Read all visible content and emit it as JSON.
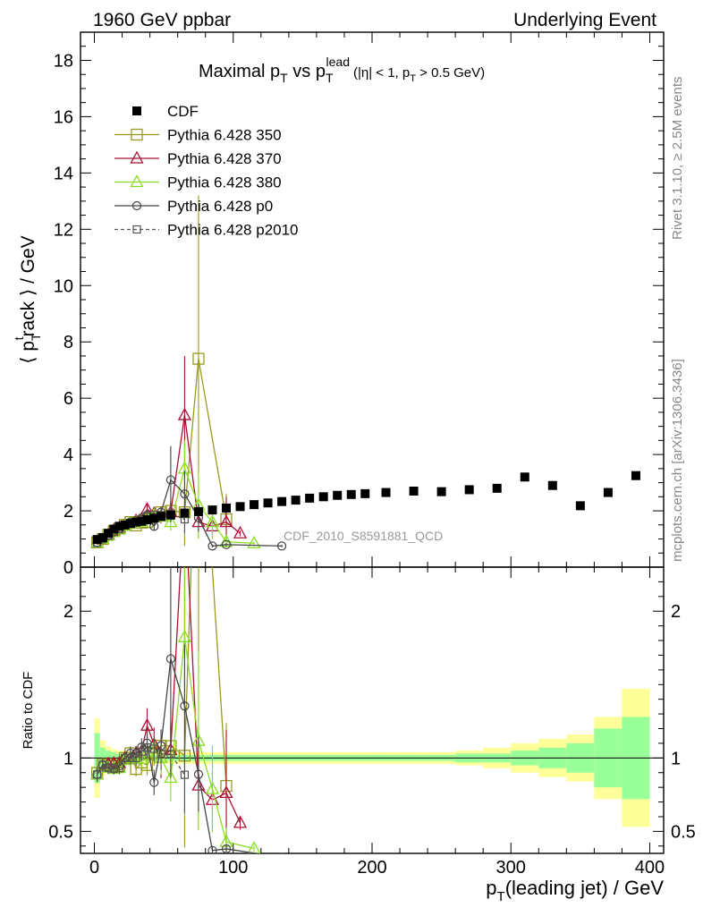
{
  "header": {
    "left": "1960 GeV ppbar",
    "right": "Underlying Event"
  },
  "title": {
    "main": "Maximal p",
    "main_sub": "T",
    "vs": " vs p",
    "vs_sub": "T",
    "vs_sup": "lead",
    "cut_part1": "(|η| < 1, p",
    "cut_sub": "T",
    "cut_part2": " > 0.5 GeV)"
  },
  "side_labels": {
    "rivet": "Rivet 3.1.10, ≥ 2.5M events",
    "mcplots": "mcplots.cern.ch [arXiv:1306.3436]"
  },
  "analysis_label": "CDF_2010_S8591881_QCD",
  "axes": {
    "ylabel_top_prefix": "⟨ p",
    "ylabel_top_sub": "T",
    "ylabel_top_sup": "t",
    "ylabel_top_suffix": "rack ⟩ / GeV",
    "ylabel_bottom": "Ratio to CDF",
    "xlabel_prefix": "p",
    "xlabel_sub": "T",
    "xlabel_suffix": "(leading jet) / GeV"
  },
  "legend": [
    {
      "label": "CDF",
      "color": "#000000",
      "marker": "filled-square",
      "line": "none"
    },
    {
      "label": "Pythia 6.428 350",
      "color": "#999922",
      "marker": "open-square",
      "line": "solid"
    },
    {
      "label": "Pythia 6.428 370",
      "color": "#aa1133",
      "marker": "open-triangle",
      "line": "solid"
    },
    {
      "label": "Pythia 6.428 380",
      "color": "#88dd22",
      "marker": "open-triangle",
      "line": "solid"
    },
    {
      "label": "Pythia 6.428 p0",
      "color": "#444444",
      "marker": "open-circle",
      "line": "solid"
    },
    {
      "label": "Pythia 6.428 p2010",
      "color": "#555555",
      "marker": "open-square-small",
      "line": "dashed"
    }
  ],
  "chart_data": {
    "type": "scatter",
    "x_range": [
      -10,
      410
    ],
    "y_range_top": [
      0,
      19
    ],
    "y_range_bottom": [
      0.35,
      2.3
    ],
    "x_ticks": [
      0,
      100,
      200,
      300,
      400
    ],
    "y_ticks_top": [
      0,
      2,
      4,
      6,
      8,
      10,
      12,
      14,
      16,
      18
    ],
    "y_ticks_bottom": [
      0.5,
      1,
      2
    ],
    "data": {
      "x": [
        2,
        6,
        10,
        14,
        18,
        22,
        26,
        30,
        34,
        38,
        43,
        48,
        55,
        65,
        75,
        85,
        95,
        105,
        115,
        125,
        135,
        145,
        155,
        165,
        175,
        185,
        195,
        210,
        230,
        250,
        270,
        290,
        310,
        330,
        350,
        370,
        390
      ],
      "y": [
        0.98,
        1.05,
        1.2,
        1.35,
        1.45,
        1.5,
        1.55,
        1.6,
        1.63,
        1.68,
        1.74,
        1.8,
        1.85,
        1.92,
        1.97,
        2.03,
        2.1,
        2.15,
        2.22,
        2.28,
        2.33,
        2.38,
        2.45,
        2.5,
        2.55,
        2.58,
        2.61,
        2.65,
        2.7,
        2.68,
        2.75,
        2.8,
        3.2,
        2.9,
        2.18,
        2.65,
        3.25
      ]
    },
    "bands": {
      "x_edges": [
        0,
        4,
        8,
        12,
        16,
        20,
        24,
        28,
        32,
        36,
        40,
        45,
        50,
        60,
        70,
        80,
        90,
        100,
        110,
        120,
        130,
        140,
        150,
        160,
        170,
        180,
        190,
        200,
        220,
        240,
        260,
        280,
        300,
        320,
        340,
        360,
        380,
        400
      ],
      "stat": [
        0.17,
        0.07,
        0.05,
        0.04,
        0.03,
        0.03,
        0.03,
        0.02,
        0.02,
        0.02,
        0.02,
        0.02,
        0.02,
        0.02,
        0.02,
        0.02,
        0.02,
        0.02,
        0.02,
        0.02,
        0.02,
        0.02,
        0.02,
        0.02,
        0.02,
        0.02,
        0.02,
        0.02,
        0.02,
        0.02,
        0.03,
        0.03,
        0.05,
        0.07,
        0.1,
        0.2,
        0.28
      ],
      "total": [
        0.27,
        0.12,
        0.08,
        0.06,
        0.05,
        0.05,
        0.04,
        0.04,
        0.04,
        0.04,
        0.04,
        0.04,
        0.04,
        0.04,
        0.04,
        0.04,
        0.04,
        0.04,
        0.04,
        0.04,
        0.04,
        0.04,
        0.04,
        0.04,
        0.04,
        0.04,
        0.04,
        0.04,
        0.04,
        0.04,
        0.05,
        0.07,
        0.1,
        0.13,
        0.16,
        0.28,
        0.47
      ]
    },
    "series": [
      {
        "name": "Pythia 6.428 350",
        "x": [
          2,
          6,
          10,
          14,
          18,
          22,
          26,
          30,
          34,
          38,
          43,
          48,
          55,
          65,
          75,
          95
        ],
        "y": [
          0.88,
          1.0,
          1.15,
          1.28,
          1.37,
          1.5,
          1.6,
          1.48,
          1.58,
          1.6,
          1.8,
          1.95,
          2.0,
          1.95,
          7.4,
          1.7
        ],
        "err": [
          0.05,
          0.05,
          0.05,
          0.05,
          0.06,
          0.06,
          0.07,
          0.08,
          0.1,
          0.12,
          0.15,
          0.2,
          0.3,
          1.2,
          5.8,
          0.9
        ]
      },
      {
        "name": "Pythia 6.428 370",
        "x": [
          2,
          6,
          10,
          14,
          18,
          22,
          26,
          30,
          34,
          38,
          43,
          48,
          55,
          65,
          75,
          85,
          95,
          105
        ],
        "y": [
          0.87,
          1.0,
          1.15,
          1.3,
          1.4,
          1.5,
          1.55,
          1.65,
          1.7,
          2.05,
          1.9,
          1.8,
          1.95,
          5.4,
          1.6,
          1.45,
          1.6,
          1.2
        ],
        "err": [
          0.05,
          0.05,
          0.05,
          0.05,
          0.06,
          0.06,
          0.07,
          0.08,
          0.1,
          0.2,
          0.2,
          0.25,
          0.35,
          2.1,
          0.6,
          0.4,
          0.9,
          0.1
        ]
      },
      {
        "name": "Pythia 6.428 380",
        "x": [
          2,
          6,
          10,
          14,
          18,
          22,
          26,
          30,
          34,
          38,
          43,
          48,
          55,
          65,
          75,
          85,
          95,
          115
        ],
        "y": [
          0.87,
          1.0,
          1.12,
          1.25,
          1.35,
          1.48,
          1.55,
          1.6,
          1.62,
          1.75,
          1.85,
          1.8,
          1.6,
          3.5,
          2.2,
          1.6,
          0.9,
          0.85
        ],
        "err": [
          0.05,
          0.05,
          0.05,
          0.05,
          0.06,
          0.06,
          0.07,
          0.08,
          0.1,
          0.12,
          0.15,
          0.2,
          0.3,
          1.0,
          1.2,
          0.6,
          0.2,
          0.05
        ]
      },
      {
        "name": "Pythia 6.428 p0",
        "x": [
          2,
          6,
          10,
          14,
          18,
          22,
          26,
          30,
          34,
          38,
          43,
          48,
          55,
          65,
          75,
          85,
          95,
          135
        ],
        "y": [
          0.87,
          1.0,
          1.12,
          1.25,
          1.37,
          1.5,
          1.6,
          1.65,
          1.75,
          1.85,
          1.45,
          1.95,
          3.1,
          2.6,
          1.75,
          0.75,
          0.8,
          0.75
        ],
        "err": [
          0.05,
          0.05,
          0.05,
          0.05,
          0.06,
          0.06,
          0.07,
          0.08,
          0.1,
          0.12,
          0.15,
          0.2,
          1.2,
          0.8,
          0.5,
          0.05,
          0.05,
          0.05
        ]
      },
      {
        "name": "Pythia 6.428 p2010",
        "x": [
          2,
          6,
          10,
          14,
          18,
          22,
          26,
          30,
          34,
          38,
          43,
          48,
          55,
          65
        ],
        "y": [
          0.87,
          1.0,
          1.12,
          1.25,
          1.35,
          1.5,
          1.55,
          1.6,
          1.7,
          1.8,
          1.85,
          1.85,
          1.9,
          1.7
        ],
        "err": [
          0.05,
          0.05,
          0.05,
          0.05,
          0.06,
          0.06,
          0.07,
          0.08,
          0.1,
          0.12,
          0.15,
          0.2,
          0.3,
          0.5
        ]
      }
    ]
  }
}
